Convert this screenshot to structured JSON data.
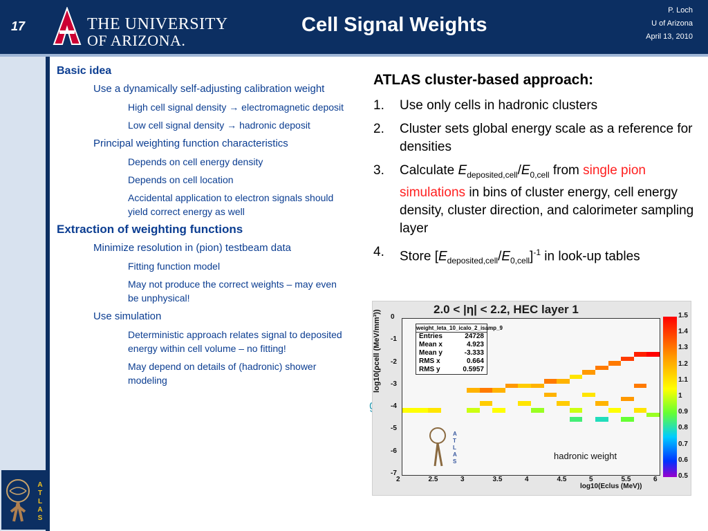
{
  "header": {
    "slide_number": "17",
    "university_line1": "THE UNIVERSITY",
    "university_line2": "OF ARIZONA.",
    "title": "Cell Signal Weights",
    "author": "P. Loch",
    "affiliation": "U of Arizona",
    "date": "April 13, 2010"
  },
  "left": {
    "basic_idea": "Basic idea",
    "l2_a": "Use a dynamically self-adjusting calibration weight",
    "l3_a1": "High cell signal density → electromagnetic deposit",
    "l3_a2": "Low cell signal density → hadronic deposit",
    "l2_b": "Principal weighting function characteristics",
    "l3_b1": "Depends on cell energy density",
    "l3_b2": "Depends on cell location",
    "l3_b3": "Accidental application to electron signals should yield correct energy as well",
    "extraction": "Extraction of weighting functions",
    "l2_c": "Minimize resolution in (pion) testbeam data",
    "l3_c1": "Fitting function model",
    "l3_c2": "May not produce the correct weights – may even be unphysical!",
    "l2_d": "Use simulation",
    "l3_d1": "Deterministic  approach relates signal to deposited energy within cell volume – no fitting!",
    "l3_d2": "May depend on details of (hadronic) shower modeling"
  },
  "right": {
    "heading": "ATLAS cluster-based approach:",
    "items": [
      {
        "num": "1.",
        "text": "Use only cells in hadronic clusters"
      },
      {
        "num": "2.",
        "text": "Cluster sets global energy scale as a reference for densities"
      }
    ],
    "item3_num": "3.",
    "item3_pre": "Calculate ",
    "item3_e": "E",
    "item3_sub1": "deposited,cell",
    "item3_slash": "/",
    "item3_sub2": "0,cell",
    "item3_from": " from ",
    "item3_red": "single pion simulations",
    "item3_post": " in bins of cluster energy, cell energy density, cluster direction, and calorimeter sampling layer",
    "item4_num": "4.",
    "item4_pre": "Store [",
    "item4_close": "]",
    "item4_sup": "-1",
    "item4_post": " in look-up tables"
  },
  "plot": {
    "title": "2.0 < |η| < 2.2, HEC layer 1",
    "ylabel": "log10(ρcell (MeV/mm³))",
    "xlabel": "log10(Eclus (MeV))",
    "annotation": "hadronic weight",
    "stats_header": "weight_leta_10_icalo_2_isamp_9",
    "stats": [
      {
        "k": "Entries",
        "v": "24728"
      },
      {
        "k": "Mean x",
        "v": "4.923"
      },
      {
        "k": "Mean y",
        "v": "-3.333"
      },
      {
        "k": "RMS x",
        "v": "0.664"
      },
      {
        "k": "RMS y",
        "v": "0.5957"
      }
    ],
    "xticks": [
      "2",
      "2.5",
      "3",
      "3.5",
      "4",
      "4.5",
      "5",
      "5.5",
      "6"
    ],
    "yticks": [
      "0",
      "-1",
      "-2",
      "-3",
      "-4",
      "-5",
      "-6",
      "-7"
    ],
    "zticks": [
      "1.5",
      "1.4",
      "1.3",
      "1.2",
      "1.1",
      "1",
      "0.9",
      "0.8",
      "0.7",
      "0.6",
      "0.5"
    ],
    "ghost_text": "g-"
  },
  "chart_data": {
    "type": "heatmap",
    "title": "2.0 < |η| < 2.2, HEC layer 1",
    "xlabel": "log10(Eclus (MeV))",
    "ylabel": "log10(ρcell (MeV/mm³))",
    "xlim": [
      2,
      6
    ],
    "ylim": [
      -7,
      0
    ],
    "zlim": [
      0.5,
      1.5
    ],
    "cells": [
      {
        "x": 2.1,
        "y": -4.1,
        "z": 1.05
      },
      {
        "x": 2.3,
        "y": -4.1,
        "z": 1.05
      },
      {
        "x": 2.5,
        "y": -4.1,
        "z": 1.1
      },
      {
        "x": 3.1,
        "y": -3.2,
        "z": 1.2
      },
      {
        "x": 3.3,
        "y": -3.2,
        "z": 1.3
      },
      {
        "x": 3.5,
        "y": -3.2,
        "z": 1.2
      },
      {
        "x": 3.7,
        "y": -3.0,
        "z": 1.25
      },
      {
        "x": 3.9,
        "y": -3.0,
        "z": 1.15
      },
      {
        "x": 4.1,
        "y": -3.0,
        "z": 1.2
      },
      {
        "x": 4.3,
        "y": -2.8,
        "z": 1.3
      },
      {
        "x": 4.5,
        "y": -2.8,
        "z": 1.2
      },
      {
        "x": 4.7,
        "y": -2.6,
        "z": 1.1
      },
      {
        "x": 4.9,
        "y": -2.4,
        "z": 1.25
      },
      {
        "x": 5.1,
        "y": -2.2,
        "z": 1.3
      },
      {
        "x": 5.3,
        "y": -2.0,
        "z": 1.3
      },
      {
        "x": 5.5,
        "y": -1.8,
        "z": 1.4
      },
      {
        "x": 5.7,
        "y": -1.6,
        "z": 1.45
      },
      {
        "x": 5.9,
        "y": -1.6,
        "z": 1.5
      },
      {
        "x": 3.1,
        "y": -4.1,
        "z": 1.0
      },
      {
        "x": 3.5,
        "y": -4.1,
        "z": 1.05
      },
      {
        "x": 4.1,
        "y": -4.1,
        "z": 0.95
      },
      {
        "x": 4.7,
        "y": -4.1,
        "z": 1.0
      },
      {
        "x": 5.3,
        "y": -4.1,
        "z": 1.05
      },
      {
        "x": 5.7,
        "y": -4.1,
        "z": 1.1
      },
      {
        "x": 3.3,
        "y": -3.8,
        "z": 1.15
      },
      {
        "x": 3.9,
        "y": -3.8,
        "z": 1.1
      },
      {
        "x": 4.5,
        "y": -3.8,
        "z": 1.15
      },
      {
        "x": 5.1,
        "y": -3.8,
        "z": 1.2
      },
      {
        "x": 5.5,
        "y": -3.6,
        "z": 1.25
      },
      {
        "x": 4.3,
        "y": -3.4,
        "z": 1.2
      },
      {
        "x": 4.9,
        "y": -3.4,
        "z": 1.1
      },
      {
        "x": 5.7,
        "y": -3.0,
        "z": 1.3
      },
      {
        "x": 4.7,
        "y": -4.5,
        "z": 0.85
      },
      {
        "x": 5.1,
        "y": -4.5,
        "z": 0.8
      },
      {
        "x": 5.5,
        "y": -4.5,
        "z": 0.9
      },
      {
        "x": 5.9,
        "y": -4.3,
        "z": 0.95
      }
    ]
  },
  "colors": {
    "header_bg": "#0c2f62",
    "left_text": "#0b3d91",
    "highlight_red": "#ff1f1f",
    "university_red": "#cc0033"
  }
}
